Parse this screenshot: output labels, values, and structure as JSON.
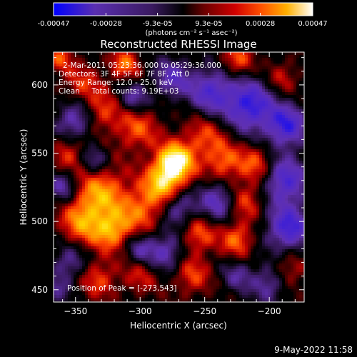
{
  "colorbar": {
    "tick_labels": [
      "-0.00047",
      "-0.00028",
      "-9.3e-05",
      "9.3e-05",
      "0.00028",
      "0.00047"
    ],
    "tick_values": [
      -0.00047,
      -0.00028,
      -9.3e-05,
      9.3e-05,
      0.00028,
      0.00047
    ],
    "range": [
      -0.00047,
      0.00047
    ],
    "unit_label": "(photons cm⁻² s⁻¹ asec⁻²)"
  },
  "chart_data": {
    "type": "heatmap",
    "title": "Reconstructed RHESSI Image",
    "xlabel": "Heliocentric X (arcsec)",
    "ylabel": "Heliocentric Y (arcsec)",
    "xlim": [
      -367,
      -173
    ],
    "ylim": [
      441,
      624
    ],
    "x_ticks": [
      -350,
      -300,
      -250,
      -200
    ],
    "x_tick_labels": [
      "−350",
      "−300",
      "−250",
      "−200"
    ],
    "y_ticks": [
      450,
      500,
      550,
      600
    ],
    "y_tick_labels": [
      "450",
      "500",
      "550",
      "600"
    ],
    "colormap": [
      "#0000ff",
      "#5a2fb0",
      "#3a1a60",
      "#000000",
      "#5a0000",
      "#c00000",
      "#ff4000",
      "#ff9a00",
      "#ffe000",
      "#ffffff"
    ],
    "peak": [
      -273,
      543
    ],
    "peak_value": 0.00047,
    "annotations": [
      "2-Mar-2011 05:23:36.000 to 05:29:36.000",
      "Detectors: 3F 4F 5F 6F 7F 8F, Att 0",
      "Energy Range: 12.0 - 25.0 keV",
      "Clean     Total counts: 9.19E+03"
    ],
    "peak_label": "Position of Peak = [-273,543]"
  },
  "footer": {
    "timestamp": "9-May-2022 11:58"
  }
}
